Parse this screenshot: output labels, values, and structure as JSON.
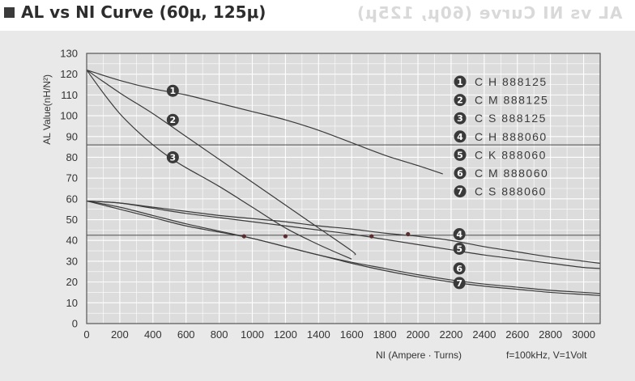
{
  "header": {
    "title": "AL vs NI Curve (60μ, 125μ)",
    "ghost_title": "AL vs NI Curve (60μ, 125μ)"
  },
  "colors": {
    "panel_bg": "#e9e9e9",
    "plot_bg": "#dcdcdc",
    "grid": "#ffffff",
    "curve": "#3a3a3a",
    "marker": "#5a2e2e"
  },
  "chart_data": {
    "type": "line",
    "title": "",
    "xlabel": "NI (Ampere · Turns)",
    "ylabel": "AL Value(nH/N²)",
    "note": "f=100kHz, V=1Volt",
    "xlim": [
      0,
      3100
    ],
    "ylim": [
      0,
      130
    ],
    "x_ticks": [
      0,
      200,
      400,
      600,
      800,
      1000,
      1200,
      1400,
      1600,
      1800,
      2000,
      2200,
      2400,
      2600,
      2800,
      3000
    ],
    "y_ticks": [
      0,
      10,
      20,
      30,
      40,
      50,
      60,
      70,
      80,
      90,
      100,
      110,
      120,
      130
    ],
    "grid": true,
    "legend_position": "top-right",
    "reference_lines": [
      86,
      42.5
    ],
    "series": [
      {
        "name": "C H 888125",
        "badge": "1",
        "label_at": [
          520,
          112
        ],
        "points": [
          [
            0,
            122
          ],
          [
            200,
            117
          ],
          [
            400,
            113
          ],
          [
            600,
            110
          ],
          [
            800,
            106
          ],
          [
            1000,
            102
          ],
          [
            1200,
            98
          ],
          [
            1400,
            93
          ],
          [
            1600,
            87
          ],
          [
            1800,
            81
          ],
          [
            2000,
            76
          ],
          [
            2150,
            72
          ]
        ]
      },
      {
        "name": "C M 888125",
        "badge": "2",
        "label_at": [
          520,
          98
        ],
        "points": [
          [
            0,
            122
          ],
          [
            200,
            111
          ],
          [
            400,
            101
          ],
          [
            600,
            90
          ],
          [
            800,
            79
          ],
          [
            1000,
            68
          ],
          [
            1200,
            57
          ],
          [
            1400,
            46
          ],
          [
            1600,
            35
          ],
          [
            1620,
            33
          ]
        ]
      },
      {
        "name": "C S 888125",
        "badge": "3",
        "label_at": [
          520,
          80
        ],
        "points": [
          [
            0,
            122
          ],
          [
            100,
            111
          ],
          [
            200,
            101
          ],
          [
            300,
            93
          ],
          [
            400,
            86
          ],
          [
            500,
            80
          ],
          [
            600,
            75
          ],
          [
            800,
            66
          ],
          [
            1000,
            56
          ],
          [
            1200,
            46
          ],
          [
            1400,
            38
          ],
          [
            1600,
            31
          ]
        ]
      },
      {
        "name": "C H 888060",
        "badge": "4",
        "label_at": [
          2250,
          43
        ],
        "points": [
          [
            0,
            59
          ],
          [
            200,
            58
          ],
          [
            400,
            56
          ],
          [
            600,
            54
          ],
          [
            800,
            52
          ],
          [
            1000,
            50.5
          ],
          [
            1200,
            49
          ],
          [
            1400,
            47
          ],
          [
            1600,
            45.5
          ],
          [
            1800,
            43.5
          ],
          [
            2000,
            42
          ],
          [
            2200,
            40
          ],
          [
            2400,
            37
          ],
          [
            2600,
            34.5
          ],
          [
            2800,
            32
          ],
          [
            3000,
            30
          ],
          [
            3100,
            29
          ]
        ]
      },
      {
        "name": "C K 888060",
        "badge": "5",
        "label_at": [
          2250,
          36
        ],
        "points": [
          [
            0,
            59
          ],
          [
            200,
            58
          ],
          [
            400,
            55.5
          ],
          [
            600,
            53
          ],
          [
            800,
            51
          ],
          [
            1000,
            49
          ],
          [
            1200,
            47
          ],
          [
            1400,
            45
          ],
          [
            1600,
            43
          ],
          [
            1800,
            40.5
          ],
          [
            2000,
            38
          ],
          [
            2200,
            35.5
          ],
          [
            2400,
            33
          ],
          [
            2600,
            31
          ],
          [
            2800,
            29
          ],
          [
            3000,
            27
          ],
          [
            3100,
            26.5
          ]
        ]
      },
      {
        "name": "C M 888060",
        "badge": "6",
        "label_at": [
          2250,
          26.5
        ],
        "points": [
          [
            0,
            59
          ],
          [
            200,
            56
          ],
          [
            400,
            52
          ],
          [
            600,
            48
          ],
          [
            800,
            44.5
          ],
          [
            1000,
            41
          ],
          [
            1200,
            37
          ],
          [
            1400,
            33
          ],
          [
            1600,
            29.5
          ],
          [
            1800,
            26.5
          ],
          [
            2000,
            23.5
          ],
          [
            2200,
            21
          ],
          [
            2400,
            19
          ],
          [
            2600,
            17.5
          ],
          [
            2800,
            16
          ],
          [
            3000,
            15
          ],
          [
            3100,
            14.5
          ]
        ]
      },
      {
        "name": "C S 888060",
        "badge": "7",
        "label_at": [
          2250,
          19.5
        ],
        "points": [
          [
            0,
            59
          ],
          [
            200,
            55
          ],
          [
            400,
            51
          ],
          [
            600,
            47
          ],
          [
            800,
            44
          ],
          [
            1000,
            41
          ],
          [
            1200,
            37
          ],
          [
            1400,
            33
          ],
          [
            1600,
            29
          ],
          [
            1800,
            25.5
          ],
          [
            2000,
            22.5
          ],
          [
            2200,
            20
          ],
          [
            2400,
            18
          ],
          [
            2600,
            16.5
          ],
          [
            2800,
            15
          ],
          [
            3000,
            14
          ],
          [
            3100,
            13.5
          ]
        ]
      }
    ],
    "markers": [
      [
        950,
        42
      ],
      [
        1200,
        42
      ],
      [
        1720,
        42
      ],
      [
        1940,
        43
      ]
    ]
  }
}
